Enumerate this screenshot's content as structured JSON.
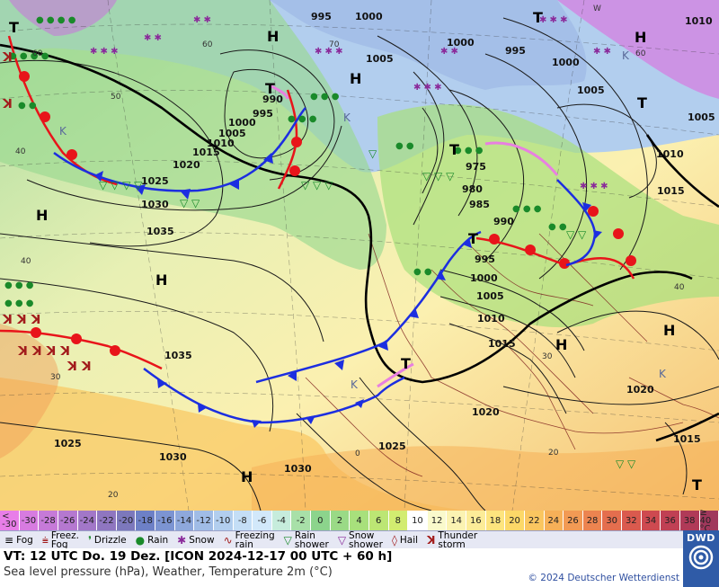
{
  "map": {
    "pressure_labels_bold": [
      "995",
      "1000",
      "1005",
      "1000",
      "995",
      "1000",
      "1005",
      "1010",
      "1015",
      "1020",
      "1025",
      "1030",
      "1035",
      "990",
      "995",
      "1000",
      "1005",
      "1010",
      "1015",
      "1020",
      "1025",
      "975",
      "980",
      "985",
      "990",
      "995",
      "1000",
      "1005",
      "1010",
      "1015",
      "1020",
      "1025",
      "1030",
      "1035",
      "1015",
      "1005",
      "1010",
      "1015"
    ],
    "temp_labels": [
      "60",
      "50",
      "40",
      "70",
      "40",
      "30",
      "20",
      "60",
      "40",
      "40",
      "30",
      "20",
      "0",
      "20"
    ],
    "high_labels": [
      "H",
      "H",
      "H",
      "H",
      "H",
      "H",
      "H",
      "H"
    ],
    "low_labels": [
      "T",
      "T",
      "T",
      "T",
      "T",
      "T",
      "T",
      "T"
    ],
    "k_labels": [
      "K",
      "K",
      "K",
      "K",
      "K"
    ]
  },
  "colorbar": {
    "cells": [
      "<\n-30",
      "-30",
      "-28",
      "-26",
      "-24",
      "-22",
      "-20",
      "-18",
      "-16",
      "-14",
      "-12",
      "-10",
      "-8",
      "-6",
      "-4",
      "-2",
      "0",
      "2",
      "4",
      "6",
      "8",
      "10",
      "12",
      "14",
      "16",
      "18",
      "20",
      "22",
      "24",
      "26",
      "28",
      "30",
      "32",
      "34",
      "36",
      "38",
      "≥\n40 °C"
    ],
    "colors": [
      "#e87ee8",
      "#d77be0",
      "#c67ad8",
      "#b578d0",
      "#a277c8",
      "#8f76c0",
      "#7c78bc",
      "#6d80c6",
      "#7c94d2",
      "#8ea8dc",
      "#a0bce6",
      "#b2ceee",
      "#c4def6",
      "#d2e8fa",
      "#c6ecdc",
      "#a8e0a8",
      "#8cd48c",
      "#9ada86",
      "#a8e07c",
      "#bce674",
      "#d2ec70",
      "#ffffff",
      "#fafacc",
      "#fbf3b2",
      "#fcec98",
      "#fde47e",
      "#fcd868",
      "#fac660",
      "#f6b058",
      "#f29a54",
      "#ec8450",
      "#e46e4e",
      "#da5a4e",
      "#ce4a50",
      "#c04054",
      "#b03a58",
      "#a0385c"
    ]
  },
  "legend": {
    "items": [
      {
        "icon": "≡",
        "label": "Fog"
      },
      {
        "icon": "⩧",
        "label": "Freez.\nFog"
      },
      {
        "icon": "❜",
        "label": "Drizzle"
      },
      {
        "icon": "●",
        "label": "Rain"
      },
      {
        "icon": "✱",
        "label": "Snow"
      },
      {
        "icon": "∿",
        "label": "Freezing\nrain"
      },
      {
        "icon": "▽",
        "label": "Rain\nshower"
      },
      {
        "icon": "▽",
        "label": "Snow\nshower"
      },
      {
        "icon": "◊",
        "label": "Hail"
      },
      {
        "icon": "ꓘ",
        "label": "Thunder\nstorm"
      }
    ]
  },
  "info": {
    "line1": "VT: 12 UTC Do.  19 Dez. [ICON 2024-12-17  00 UTC + 60 h]",
    "line2": "Sea level pressure (hPa), Weather, Temperature 2m (°C)",
    "copyright": "© 2024 Deutscher Wetterdienst"
  },
  "logo": {
    "text": "DWD"
  },
  "colors": {
    "warm_front": "#e8141a",
    "cold_front": "#1c2ee0",
    "occlusion": "#e880e0",
    "isobar": "#1a1a1a",
    "land_border": "#7a1a1a"
  }
}
